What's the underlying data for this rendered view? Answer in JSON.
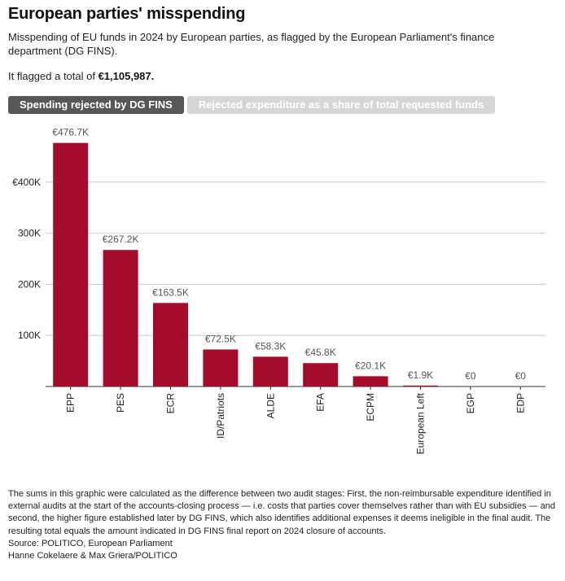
{
  "header": {
    "title": "European parties' misspending",
    "subtitle": "Misspending of EU funds in 2024 by European parties, as flagged by the European Parliament's finance department (DG FINS).",
    "total_prefix": "It flagged a total of ",
    "total_value": "€1,105,987."
  },
  "tabs": [
    {
      "label": "Spending rejected by DG FINS",
      "active": true
    },
    {
      "label": "Rejected expenditure as a share of total requested funds",
      "active": false
    }
  ],
  "colors": {
    "bar": "#a50b2a",
    "active_tab": "#575757",
    "inactive_tab": "#d6d6d6",
    "grid": "#c8c8c8"
  },
  "chart_data": {
    "type": "bar",
    "categories": [
      "EPP",
      "PES",
      "ECR",
      "ID/Patriots",
      "ALDE",
      "EFA",
      "ECPM",
      "European Left",
      "EGP",
      "EDP"
    ],
    "values": [
      476700,
      267200,
      163500,
      72500,
      58300,
      45800,
      20100,
      1900,
      0,
      0
    ],
    "data_labels": [
      "€476.7K",
      "€267.2K",
      "€163.5K",
      "€72.5K",
      "€58.3K",
      "€45.8K",
      "€20.1K",
      "€1.9K",
      "€0",
      "€0"
    ],
    "y_ticks": [
      100000,
      200000,
      300000,
      400000
    ],
    "y_tick_labels": [
      "100K",
      "200K",
      "300K",
      "€400K"
    ],
    "ylim": [
      0,
      500000
    ],
    "grid": true,
    "title": "",
    "xlabel": "",
    "ylabel": ""
  },
  "footer": {
    "note": "The sums in this graphic were calculated as the difference between two audit stages: First, the non-reimbursable expenditure identified in external audits at the start of the accounts-closing process — i.e. costs that parties cover themselves rather than with EU subsidies — and second, the higher figure established later by DG FINS, which also identifies additional expenses it deems ineligible in the final audit. The resulting total equals the amount indicated in DG FINS final report on 2024 closure of accounts.",
    "source": "Source: POLITICO, European Parliament",
    "credit": "Hanne Cokelaere & Max Griera/POLITICO"
  }
}
